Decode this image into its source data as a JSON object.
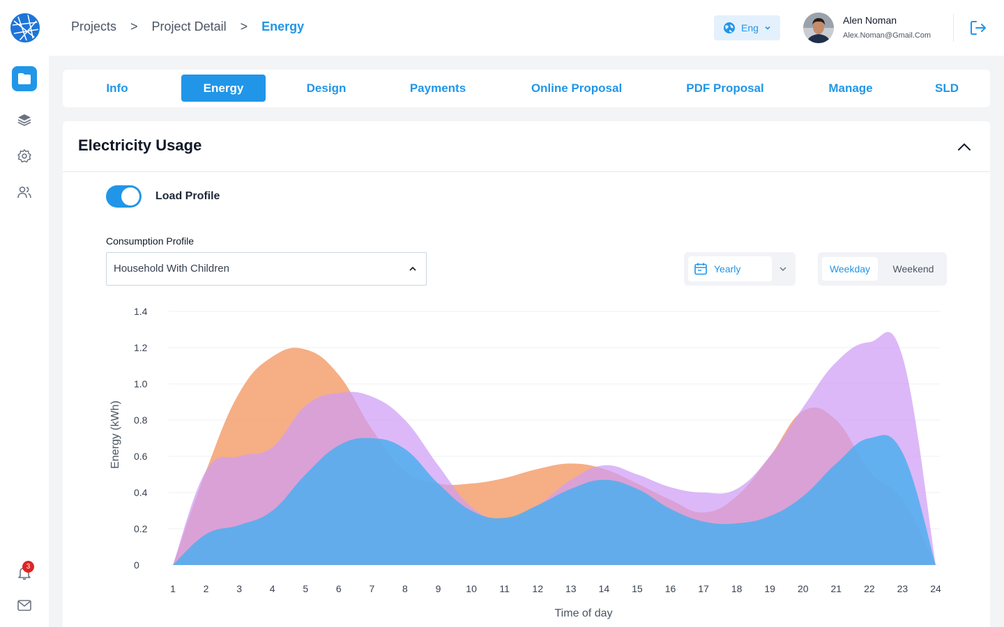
{
  "breadcrumb": {
    "items": [
      "Projects",
      "Project Detail"
    ],
    "current": "Energy"
  },
  "language": {
    "label": "Eng"
  },
  "user": {
    "name": "Alen Noman",
    "email": "Alex.Noman@Gmail.Com"
  },
  "sidebar": {
    "items": [
      {
        "icon": "folder-icon",
        "active": true
      },
      {
        "icon": "layers-icon",
        "active": false
      },
      {
        "icon": "gear-icon",
        "active": false
      },
      {
        "icon": "users-icon",
        "active": false
      }
    ],
    "notifications": {
      "icon": "bell-icon",
      "count": "3"
    },
    "mail": {
      "icon": "mail-icon"
    }
  },
  "tabs": [
    {
      "label": "Info",
      "active": false
    },
    {
      "label": "Energy",
      "active": true
    },
    {
      "label": "Design",
      "active": false
    },
    {
      "label": "Payments",
      "active": false
    },
    {
      "label": "Online Proposal",
      "active": false
    },
    {
      "label": "PDF Proposal",
      "active": false
    },
    {
      "label": "Manage",
      "active": false
    },
    {
      "label": "SLD",
      "active": false
    }
  ],
  "panel": {
    "title": "Electricity Usage",
    "toggle": {
      "label": "Load Profile",
      "on": true
    },
    "consumption": {
      "label": "Consumption Profile",
      "value": "Household With Children"
    },
    "period": {
      "value": "Yearly"
    },
    "daytype": {
      "options": [
        "Weekday",
        "Weekend"
      ],
      "selected": "Weekday"
    }
  },
  "colors": {
    "accent": "#2196e8",
    "orange": "#f4a070",
    "purple": "#cf9cf5",
    "blue": "#4daeee"
  },
  "chart_data": {
    "type": "area",
    "xlabel": "Time of day",
    "ylabel": "Energy (kWh)",
    "ylim": [
      0,
      1.4
    ],
    "yticks": [
      "0",
      "0.2",
      "0.4",
      "0.6",
      "0.8",
      "1.0",
      "1.2",
      "1.4"
    ],
    "categories": [
      "1",
      "2",
      "3",
      "4",
      "5",
      "6",
      "7",
      "8",
      "9",
      "10",
      "11",
      "12",
      "13",
      "14",
      "15",
      "16",
      "17",
      "18",
      "19",
      "20",
      "21",
      "22",
      "23",
      "24"
    ],
    "grid": true,
    "series": [
      {
        "color": "#f4a070",
        "values": [
          0,
          0.52,
          0.95,
          1.15,
          1.19,
          1.05,
          0.75,
          0.52,
          0.45,
          0.45,
          0.48,
          0.53,
          0.56,
          0.53,
          0.45,
          0.36,
          0.29,
          0.38,
          0.6,
          0.85,
          0.8,
          0.52,
          0.36,
          0
        ]
      },
      {
        "color": "#cf9cf5",
        "values": [
          0,
          0.52,
          0.6,
          0.65,
          0.88,
          0.95,
          0.93,
          0.8,
          0.55,
          0.32,
          0.25,
          0.33,
          0.47,
          0.55,
          0.5,
          0.43,
          0.4,
          0.42,
          0.6,
          0.87,
          1.12,
          1.23,
          1.15,
          0
        ]
      },
      {
        "color": "#4daeee",
        "values": [
          0,
          0.17,
          0.22,
          0.3,
          0.5,
          0.66,
          0.7,
          0.64,
          0.45,
          0.3,
          0.26,
          0.33,
          0.42,
          0.47,
          0.42,
          0.31,
          0.24,
          0.23,
          0.27,
          0.38,
          0.56,
          0.7,
          0.62,
          0
        ]
      }
    ]
  }
}
